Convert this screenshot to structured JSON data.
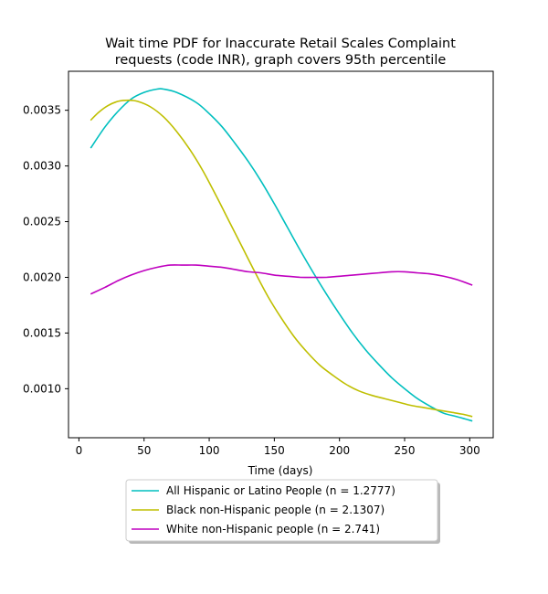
{
  "chart_data": {
    "type": "line",
    "title_lines": [
      "Wait time PDF for Inaccurate Retail Scales Complaint",
      "requests (code INR), graph covers 95th percentile"
    ],
    "xlabel": "Time (days)",
    "ylabel": "",
    "xlim": [
      -8,
      318
    ],
    "ylim": [
      0.00056,
      0.00385
    ],
    "xticks": [
      0,
      50,
      100,
      150,
      200,
      250,
      300
    ],
    "yticks": [
      0.001,
      0.0015,
      0.002,
      0.0025,
      0.003,
      0.0035
    ],
    "ytick_labels": [
      "0.0010",
      "0.0015",
      "0.0020",
      "0.0025",
      "0.0030",
      "0.0035"
    ],
    "grid": false,
    "legend_position": "below-center",
    "series": [
      {
        "name": "All Hispanic or Latino People (n = 1.2777)",
        "color": "#00bfbf",
        "x": [
          9,
          20,
          30,
          40,
          50,
          60,
          65,
          75,
          90,
          100,
          110,
          120,
          130,
          140,
          150,
          160,
          170,
          180,
          190,
          200,
          210,
          220,
          230,
          240,
          250,
          260,
          270,
          280,
          290,
          302
        ],
        "y": [
          0.00316,
          0.00335,
          0.00349,
          0.0036,
          0.00366,
          0.00369,
          0.00369,
          0.00366,
          0.00357,
          0.00347,
          0.00335,
          0.0032,
          0.00304,
          0.00286,
          0.00266,
          0.00245,
          0.00224,
          0.00204,
          0.00185,
          0.00167,
          0.0015,
          0.00135,
          0.00122,
          0.0011,
          0.001,
          0.00091,
          0.00084,
          0.00078,
          0.00075,
          0.00071
        ]
      },
      {
        "name": "Black non-Hispanic people (n = 2.1307)",
        "color": "#bfbf00",
        "x": [
          9,
          15,
          22,
          30,
          38,
          45,
          55,
          65,
          75,
          85,
          95,
          105,
          115,
          125,
          135,
          145,
          155,
          165,
          175,
          185,
          195,
          205,
          215,
          225,
          235,
          245,
          255,
          265,
          275,
          285,
          295,
          302
        ],
        "y": [
          0.00341,
          0.00348,
          0.00354,
          0.00358,
          0.00359,
          0.00358,
          0.00353,
          0.00344,
          0.00331,
          0.00315,
          0.00296,
          0.00274,
          0.00251,
          0.00228,
          0.00205,
          0.00183,
          0.00164,
          0.00147,
          0.00133,
          0.00121,
          0.00112,
          0.00104,
          0.00098,
          0.00094,
          0.00091,
          0.00088,
          0.00085,
          0.00083,
          0.00081,
          0.00079,
          0.00077,
          0.00075
        ]
      },
      {
        "name": "White non-Hispanic people (n = 2.741)",
        "color": "#bf00bf",
        "x": [
          9,
          20,
          30,
          40,
          50,
          60,
          70,
          80,
          90,
          100,
          110,
          120,
          130,
          140,
          150,
          160,
          170,
          180,
          190,
          200,
          210,
          220,
          230,
          240,
          250,
          260,
          270,
          280,
          290,
          302
        ],
        "y": [
          0.00185,
          0.00191,
          0.00197,
          0.00202,
          0.00206,
          0.00209,
          0.00211,
          0.00211,
          0.00211,
          0.0021,
          0.00209,
          0.00207,
          0.00205,
          0.00204,
          0.00202,
          0.00201,
          0.002,
          0.002,
          0.002,
          0.00201,
          0.00202,
          0.00203,
          0.00204,
          0.00205,
          0.00205,
          0.00204,
          0.00203,
          0.00201,
          0.00198,
          0.00193
        ]
      }
    ]
  }
}
